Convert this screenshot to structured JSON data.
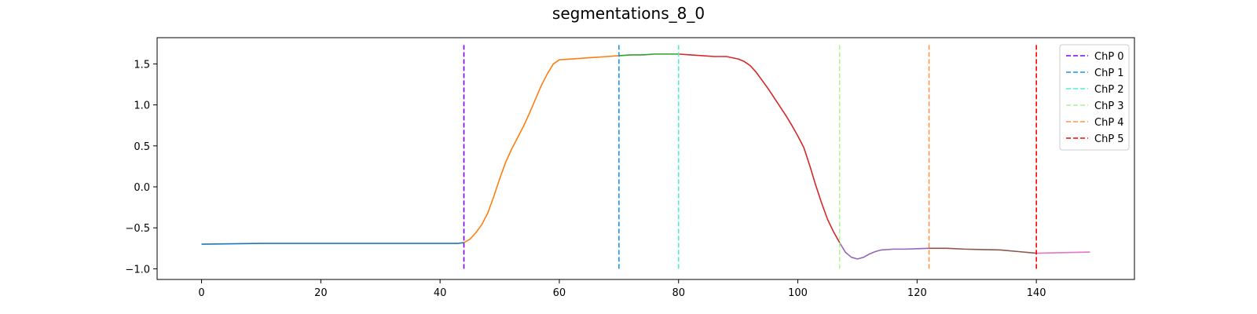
{
  "chart_data": {
    "type": "line",
    "title": "segmentations_8_0",
    "xlabel": "",
    "ylabel": "",
    "xlim": [
      -7.45,
      156.45
    ],
    "ylim": [
      -1.13,
      1.82
    ],
    "xticks": [
      0,
      20,
      40,
      60,
      80,
      100,
      120,
      140
    ],
    "xtick_labels": [
      "0",
      "20",
      "40",
      "60",
      "80",
      "100",
      "120",
      "140"
    ],
    "yticks": [
      -1.0,
      -0.5,
      0.0,
      0.5,
      1.0,
      1.5
    ],
    "ytick_labels": [
      "−1.0",
      "−0.5",
      "0.0",
      "0.5",
      "1.0",
      "1.5"
    ],
    "grid": false,
    "legend_position": "top-right",
    "series": [
      {
        "color": "#1f77b4",
        "x": [
          0,
          5,
          10,
          15,
          20,
          25,
          30,
          35,
          40,
          43,
          44
        ],
        "y": [
          -0.7,
          -0.695,
          -0.69,
          -0.69,
          -0.69,
          -0.69,
          -0.69,
          -0.69,
          -0.69,
          -0.69,
          -0.68
        ]
      },
      {
        "color": "#ff7f0e",
        "x": [
          44,
          45,
          46,
          47,
          48,
          49,
          50,
          51,
          52,
          53,
          54,
          55,
          56,
          57,
          58,
          59,
          60,
          62,
          64,
          66,
          68,
          70
        ],
        "y": [
          -0.68,
          -0.64,
          -0.56,
          -0.46,
          -0.32,
          -0.12,
          0.1,
          0.3,
          0.46,
          0.6,
          0.74,
          0.9,
          1.07,
          1.24,
          1.38,
          1.5,
          1.55,
          1.56,
          1.57,
          1.58,
          1.59,
          1.6
        ]
      },
      {
        "color": "#2ca02c",
        "x": [
          70,
          72,
          74,
          76,
          78,
          80
        ],
        "y": [
          1.6,
          1.61,
          1.61,
          1.62,
          1.62,
          1.62
        ]
      },
      {
        "color": "#d62728",
        "x": [
          80,
          82,
          84,
          86,
          88,
          90,
          91,
          92,
          93,
          94,
          95,
          96,
          97,
          98,
          99,
          100,
          101,
          102,
          103,
          104,
          105,
          106,
          107
        ],
        "y": [
          1.62,
          1.61,
          1.6,
          1.59,
          1.59,
          1.56,
          1.53,
          1.48,
          1.4,
          1.3,
          1.2,
          1.09,
          0.98,
          0.87,
          0.75,
          0.62,
          0.48,
          0.26,
          0.02,
          -0.2,
          -0.4,
          -0.55,
          -0.68
        ]
      },
      {
        "color": "#9467bd",
        "x": [
          107,
          108,
          109,
          110,
          111,
          112,
          113,
          114,
          116,
          118,
          120,
          122
        ],
        "y": [
          -0.68,
          -0.8,
          -0.86,
          -0.88,
          -0.86,
          -0.82,
          -0.79,
          -0.77,
          -0.76,
          -0.76,
          -0.755,
          -0.75
        ]
      },
      {
        "color": "#8c564b",
        "x": [
          122,
          125,
          128,
          131,
          134,
          137,
          140
        ],
        "y": [
          -0.75,
          -0.75,
          -0.76,
          -0.765,
          -0.77,
          -0.79,
          -0.81
        ]
      },
      {
        "color": "#e377c2",
        "x": [
          140,
          143,
          146,
          149
        ],
        "y": [
          -0.81,
          -0.805,
          -0.8,
          -0.795
        ]
      }
    ],
    "changepoints": [
      {
        "name": "ChP 0",
        "x": 44,
        "color": "#8000ff"
      },
      {
        "name": "ChP 1",
        "x": 70,
        "color": "#1996f3"
      },
      {
        "name": "ChP 2",
        "x": 80,
        "color": "#4cf2ce"
      },
      {
        "name": "ChP 3",
        "x": 107,
        "color": "#b2f396"
      },
      {
        "name": "ChP 4",
        "x": 122,
        "color": "#ff964f"
      },
      {
        "name": "ChP 5",
        "x": 140,
        "color": "#ff0000"
      }
    ],
    "changepoint_y_range": [
      -1.0,
      1.75
    ]
  }
}
